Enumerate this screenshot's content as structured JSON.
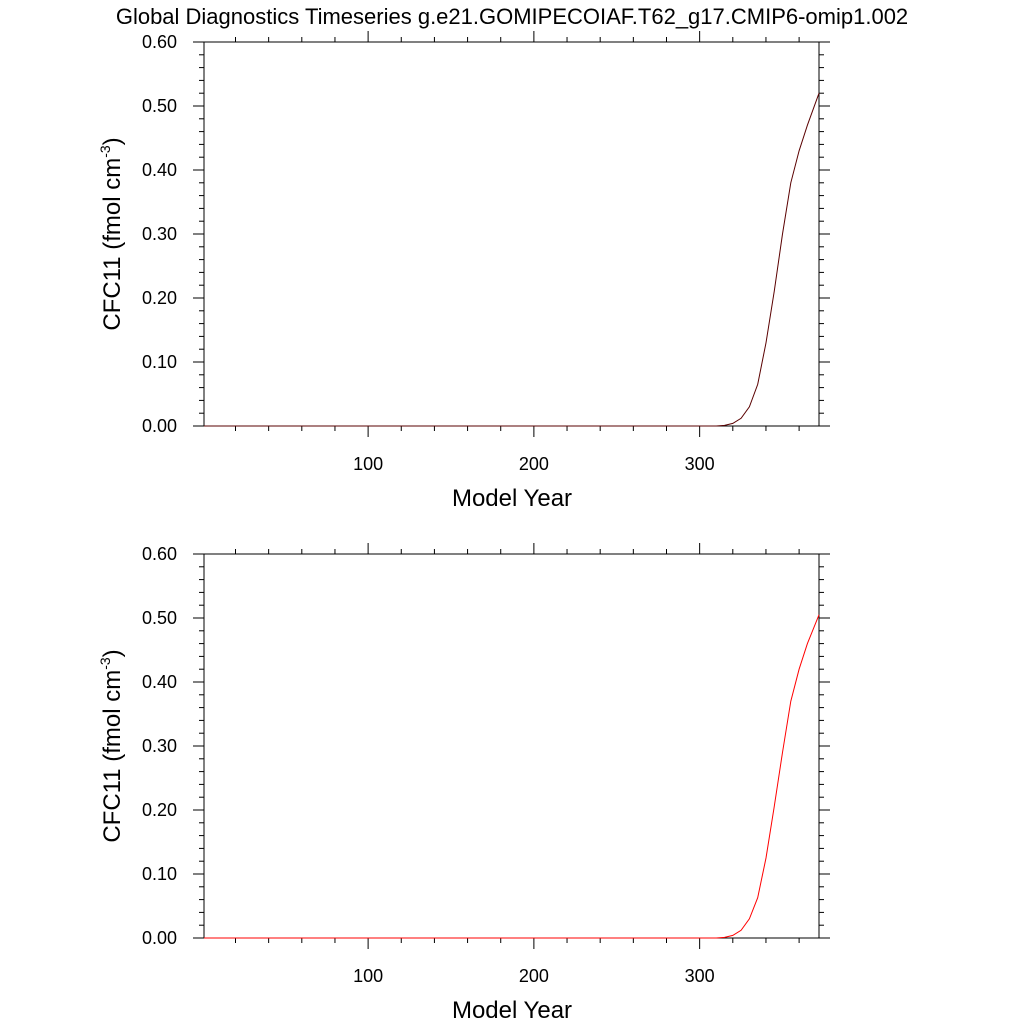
{
  "page_title": "Global Diagnostics Timeseries g.e21.GOMIPECOIAF.T62_g17.CMIP6-omip1.002",
  "colors": {
    "panel_top_line": "#5a0000",
    "panel_bottom_line": "#ff0000",
    "axis": "#000000"
  },
  "chart_data": [
    {
      "type": "line",
      "xlabel": "Model Year",
      "ylabel": {
        "main": "CFC11 (fmol cm",
        "sup": "-3",
        "close": ")"
      },
      "xlim": [
        1,
        372
      ],
      "ylim": [
        0,
        0.6
      ],
      "x_ticks": [
        100,
        200,
        300
      ],
      "x_tick_labels": [
        "100",
        "200",
        "300"
      ],
      "y_ticks": [
        0,
        0.1,
        0.2,
        0.3,
        0.4,
        0.5,
        0.6
      ],
      "y_tick_labels": [
        "0.00",
        "0.10",
        "0.20",
        "0.30",
        "0.40",
        "0.50",
        "0.60"
      ],
      "series": [
        {
          "color": "#5a0000",
          "x": [
            1,
            300,
            310,
            315,
            320,
            325,
            330,
            335,
            340,
            345,
            350,
            355,
            360,
            365,
            372
          ],
          "y": [
            0,
            0,
            0,
            0.001,
            0.004,
            0.012,
            0.03,
            0.065,
            0.13,
            0.21,
            0.3,
            0.38,
            0.43,
            0.47,
            0.52
          ]
        }
      ]
    },
    {
      "type": "line",
      "xlabel": "Model Year",
      "ylabel": {
        "main": "CFC11 (fmol cm",
        "sup": "-3",
        "close": ")"
      },
      "xlim": [
        1,
        372
      ],
      "ylim": [
        0,
        0.6
      ],
      "x_ticks": [
        100,
        200,
        300
      ],
      "x_tick_labels": [
        "100",
        "200",
        "300"
      ],
      "y_ticks": [
        0,
        0.1,
        0.2,
        0.3,
        0.4,
        0.5,
        0.6
      ],
      "y_tick_labels": [
        "0.00",
        "0.10",
        "0.20",
        "0.30",
        "0.40",
        "0.50",
        "0.60"
      ],
      "series": [
        {
          "color": "#ff0000",
          "x": [
            1,
            300,
            310,
            315,
            320,
            325,
            330,
            335,
            340,
            345,
            350,
            355,
            360,
            365,
            372
          ],
          "y": [
            0,
            0,
            0,
            0.001,
            0.004,
            0.012,
            0.03,
            0.063,
            0.125,
            0.205,
            0.29,
            0.37,
            0.42,
            0.46,
            0.505
          ]
        }
      ]
    }
  ]
}
